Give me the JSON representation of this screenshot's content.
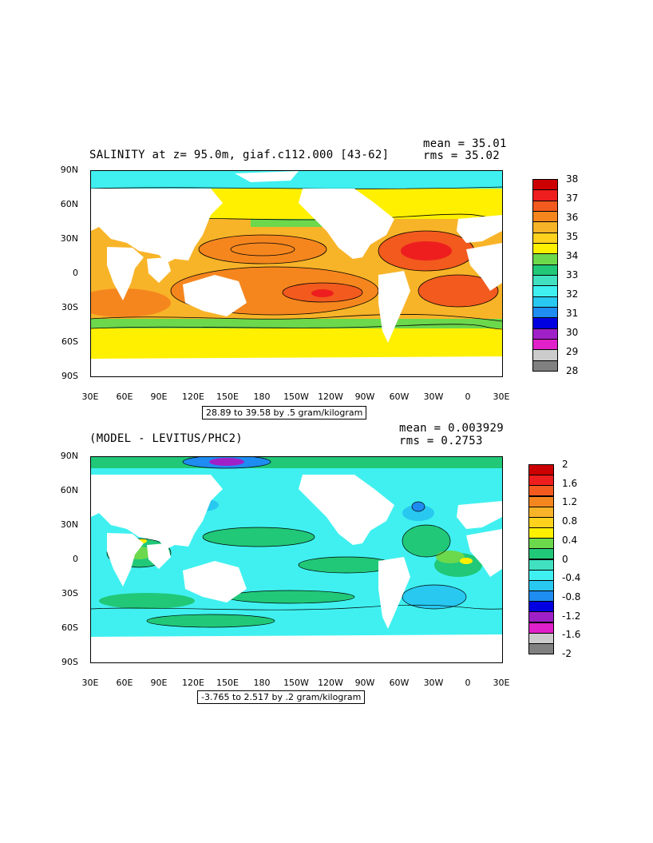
{
  "panels": [
    {
      "title": "SALINITY at z=  95.0m, giaf.c112.000 [43-62]",
      "mean": "mean = 35.01",
      "rms": "rms = 35.02",
      "range_label": "28.89 to 39.58 by .5 gram/kilogram",
      "y_ticks": [
        "90N",
        "60N",
        "30N",
        "0",
        "30S",
        "60S",
        "90S"
      ],
      "x_ticks": [
        "30E",
        "60E",
        "90E",
        "120E",
        "150E",
        "180",
        "150W",
        "120W",
        "90W",
        "60W",
        "30W",
        "0",
        "30E"
      ],
      "colorbar": {
        "labels": [
          "38",
          "37",
          "36",
          "35",
          "34",
          "33",
          "32",
          "31",
          "30",
          "29",
          "28"
        ],
        "colors": [
          "#cc0000",
          "#ee1e1e",
          "#f25a1e",
          "#f5861e",
          "#f8b428",
          "#ffd21e",
          "#fff000",
          "#6cd84c",
          "#20c878",
          "#40e0c0",
          "#40f0f0",
          "#28c8f0",
          "#1e8cf0",
          "#0000e0",
          "#a020c8",
          "#e020c8",
          "#cccccc",
          "#808080"
        ]
      }
    },
    {
      "title": "(MODEL - LEVITUS/PHC2)",
      "mean": "mean = 0.003929",
      "rms": "rms = 0.2753",
      "range_label": "-3.765 to 2.517 by .2 gram/kilogram",
      "y_ticks": [
        "90N",
        "60N",
        "30N",
        "0",
        "30S",
        "60S",
        "90S"
      ],
      "x_ticks": [
        "30E",
        "60E",
        "90E",
        "120E",
        "150E",
        "180",
        "150W",
        "120W",
        "90W",
        "60W",
        "30W",
        "0",
        "30E"
      ],
      "colorbar": {
        "labels": [
          "2",
          "1.6",
          "1.2",
          "0.8",
          "0.4",
          "0",
          "-0.4",
          "-0.8",
          "-1.2",
          "-1.6",
          "-2"
        ],
        "colors": [
          "#cc0000",
          "#ee1e1e",
          "#f25a1e",
          "#f5861e",
          "#f8b428",
          "#ffd21e",
          "#fff000",
          "#6cd84c",
          "#20c878",
          "#40e0c0",
          "#40f0f0",
          "#28c8f0",
          "#1e8cf0",
          "#0000e0",
          "#a020c8",
          "#e020c8",
          "#cccccc",
          "#808080"
        ]
      }
    }
  ],
  "map_colors": {
    "land": "#ffffff",
    "p1_south": "#fff000",
    "p1_mid": "#f8b428",
    "p1_orange": "#f5861e",
    "p1_core": "#f25a1e",
    "p1_red": "#ee1e1e",
    "p1_arctic": "#40f0f0",
    "p1_green": "#6cd84c",
    "p2_base": "#40f0f0",
    "p2_green": "#20c878",
    "p2_lgreen": "#6cd84c",
    "p2_blue": "#28c8f0",
    "p2_dblue": "#1e8cf0",
    "p2_purple": "#a020c8",
    "p2_yellow": "#fff000"
  }
}
